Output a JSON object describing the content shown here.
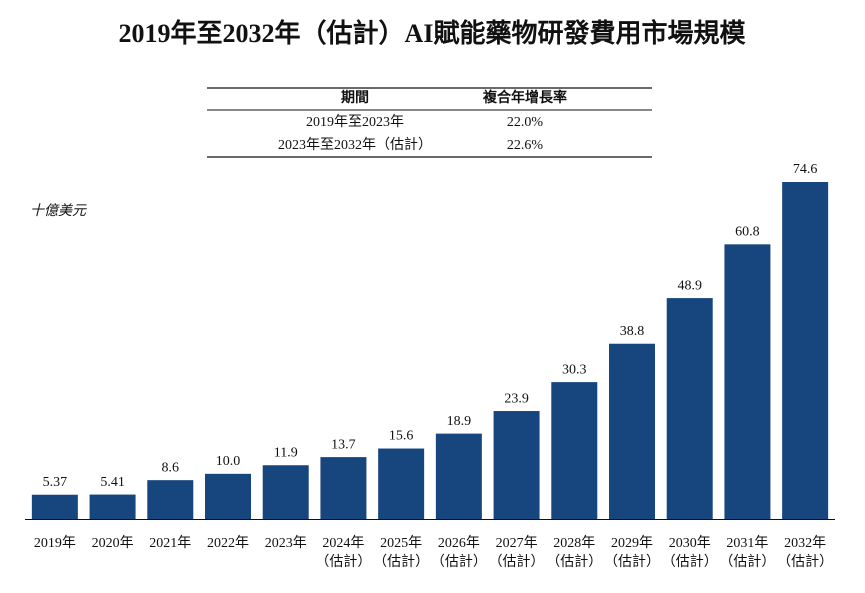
{
  "chart_data": {
    "type": "bar",
    "title": "2019年至2032年（估計）AI賦能藥物研發費用市場規模",
    "y_label": "十億美元",
    "table": {
      "headers": [
        "期間",
        "複合年增長率"
      ],
      "rows": [
        [
          "2019年至2023年",
          "22.0%"
        ],
        [
          "2023年至2032年（估計）",
          "22.6%"
        ]
      ]
    },
    "categories": [
      [
        "2019年"
      ],
      [
        "2020年"
      ],
      [
        "2021年"
      ],
      [
        "2022年"
      ],
      [
        "2023年"
      ],
      [
        "2024年",
        "（估計）"
      ],
      [
        "2025年",
        "（估計）"
      ],
      [
        "2026年",
        "（估計）"
      ],
      [
        "2027年",
        "（估計）"
      ],
      [
        "2028年",
        "（估計）"
      ],
      [
        "2029年",
        "（估計）"
      ],
      [
        "2030年",
        "（估計）"
      ],
      [
        "2031年",
        "（估計）"
      ],
      [
        "2032年",
        "（估計）"
      ]
    ],
    "values": [
      5.37,
      5.41,
      8.6,
      10.0,
      11.9,
      13.7,
      15.6,
      18.9,
      23.9,
      30.3,
      38.8,
      48.9,
      60.8,
      74.6
    ],
    "value_labels": [
      "5.37",
      "5.41",
      "8.6",
      "10.0",
      "11.9",
      "13.7",
      "15.6",
      "18.9",
      "23.9",
      "30.3",
      "38.8",
      "48.9",
      "60.8",
      "74.6"
    ],
    "color": "#17467f"
  }
}
